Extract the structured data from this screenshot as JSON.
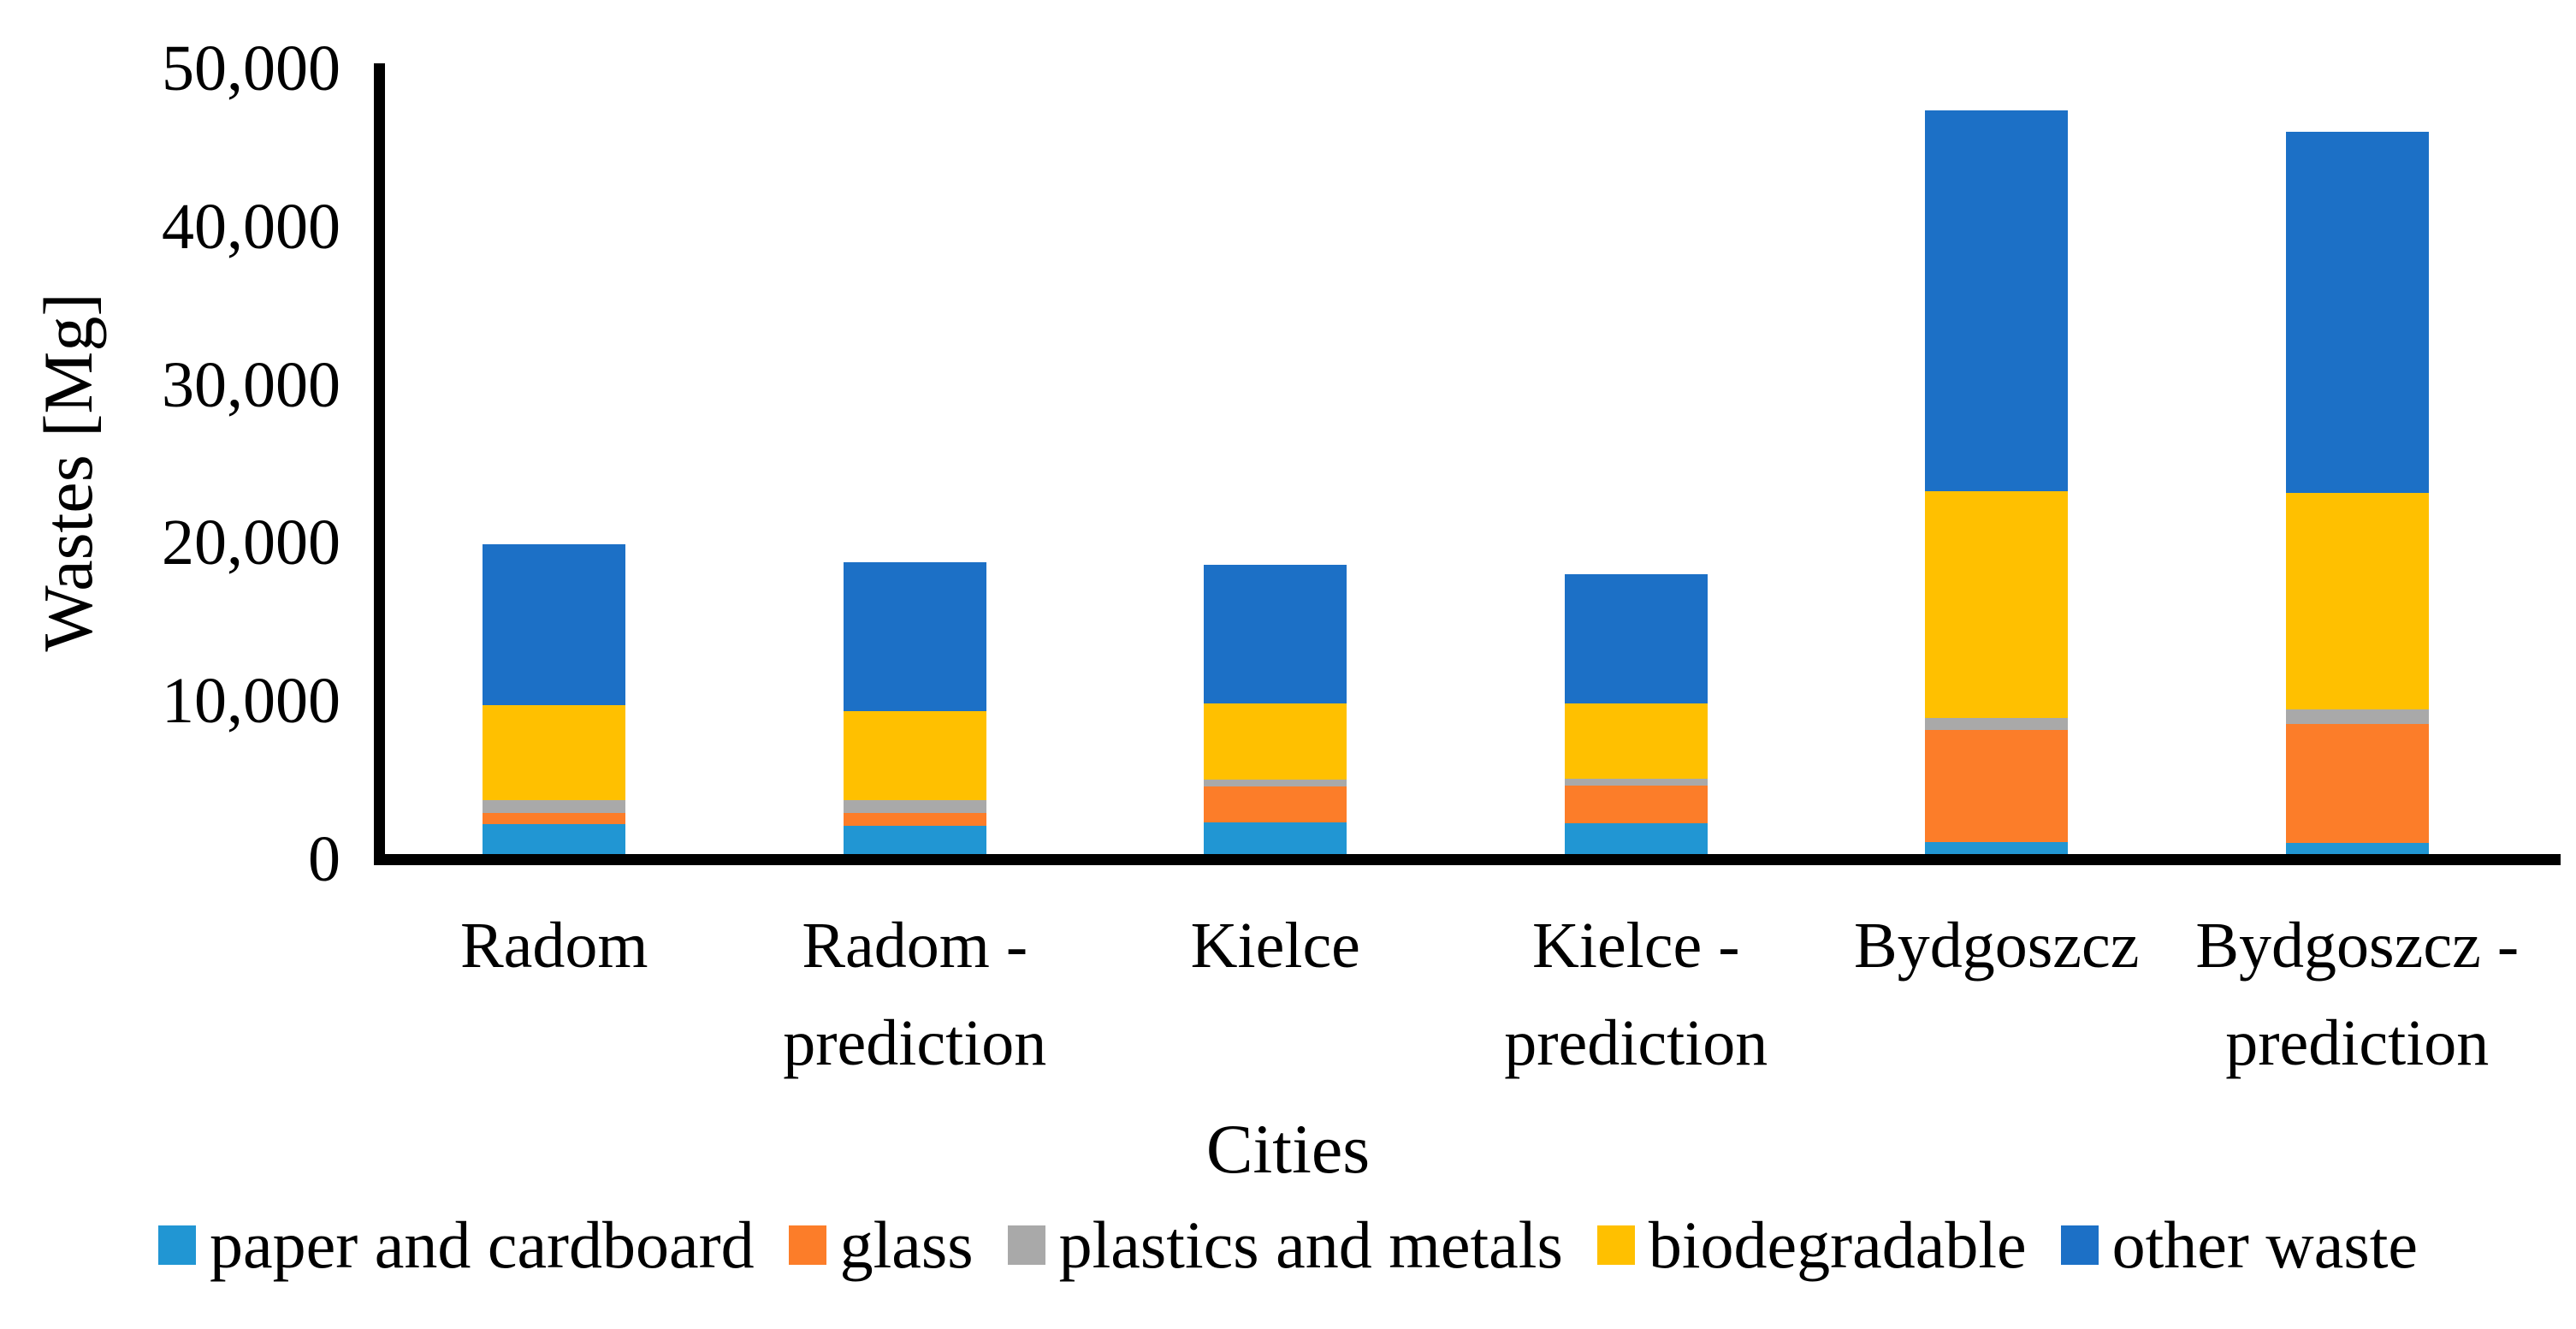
{
  "chart_data": {
    "type": "bar",
    "subtype": "stacked",
    "title": "",
    "xlabel": "Cities",
    "ylabel": "Wastes [Mg]",
    "ylim": [
      0,
      50000
    ],
    "grid": false,
    "legend_position": "bottom",
    "axis_color": "#000000",
    "background_color": "#ffffff",
    "yticks": [
      {
        "value": 0,
        "label": "0"
      },
      {
        "value": 10000,
        "label": "10,000"
      },
      {
        "value": 20000,
        "label": "20,000"
      },
      {
        "value": 30000,
        "label": "30,000"
      },
      {
        "value": 40000,
        "label": "40,000"
      },
      {
        "value": 50000,
        "label": "50,000"
      }
    ],
    "categories": [
      "Radom",
      "Radom - prediction",
      "Kielce",
      "Kielce - prediction",
      "Bydgoszcz",
      "Bydgoszcz - prediction"
    ],
    "category_label_lines": [
      [
        "Radom"
      ],
      [
        "Radom -",
        "prediction"
      ],
      [
        "Kielce"
      ],
      [
        "Kielce -",
        "prediction"
      ],
      [
        "Bydgoszcz"
      ],
      [
        "Bydgoszcz -",
        "prediction"
      ]
    ],
    "series": [
      {
        "name": "paper and cardboard",
        "color": "#2196D3",
        "values": [
          1900,
          1800,
          2000,
          1950,
          760,
          700
        ]
      },
      {
        "name": "glass",
        "color": "#FC7D29",
        "values": [
          700,
          800,
          2300,
          2400,
          7100,
          7550
        ]
      },
      {
        "name": "plastics and metals",
        "color": "#A9A9A9",
        "values": [
          800,
          830,
          400,
          410,
          730,
          900
        ]
      },
      {
        "name": "biodegradable",
        "color": "#FFC000",
        "values": [
          6000,
          5600,
          4850,
          4750,
          14350,
          13700
        ]
      },
      {
        "name": "other waste",
        "color": "#1C70C6",
        "values": [
          10200,
          9450,
          8750,
          8200,
          24100,
          22850
        ]
      }
    ]
  }
}
